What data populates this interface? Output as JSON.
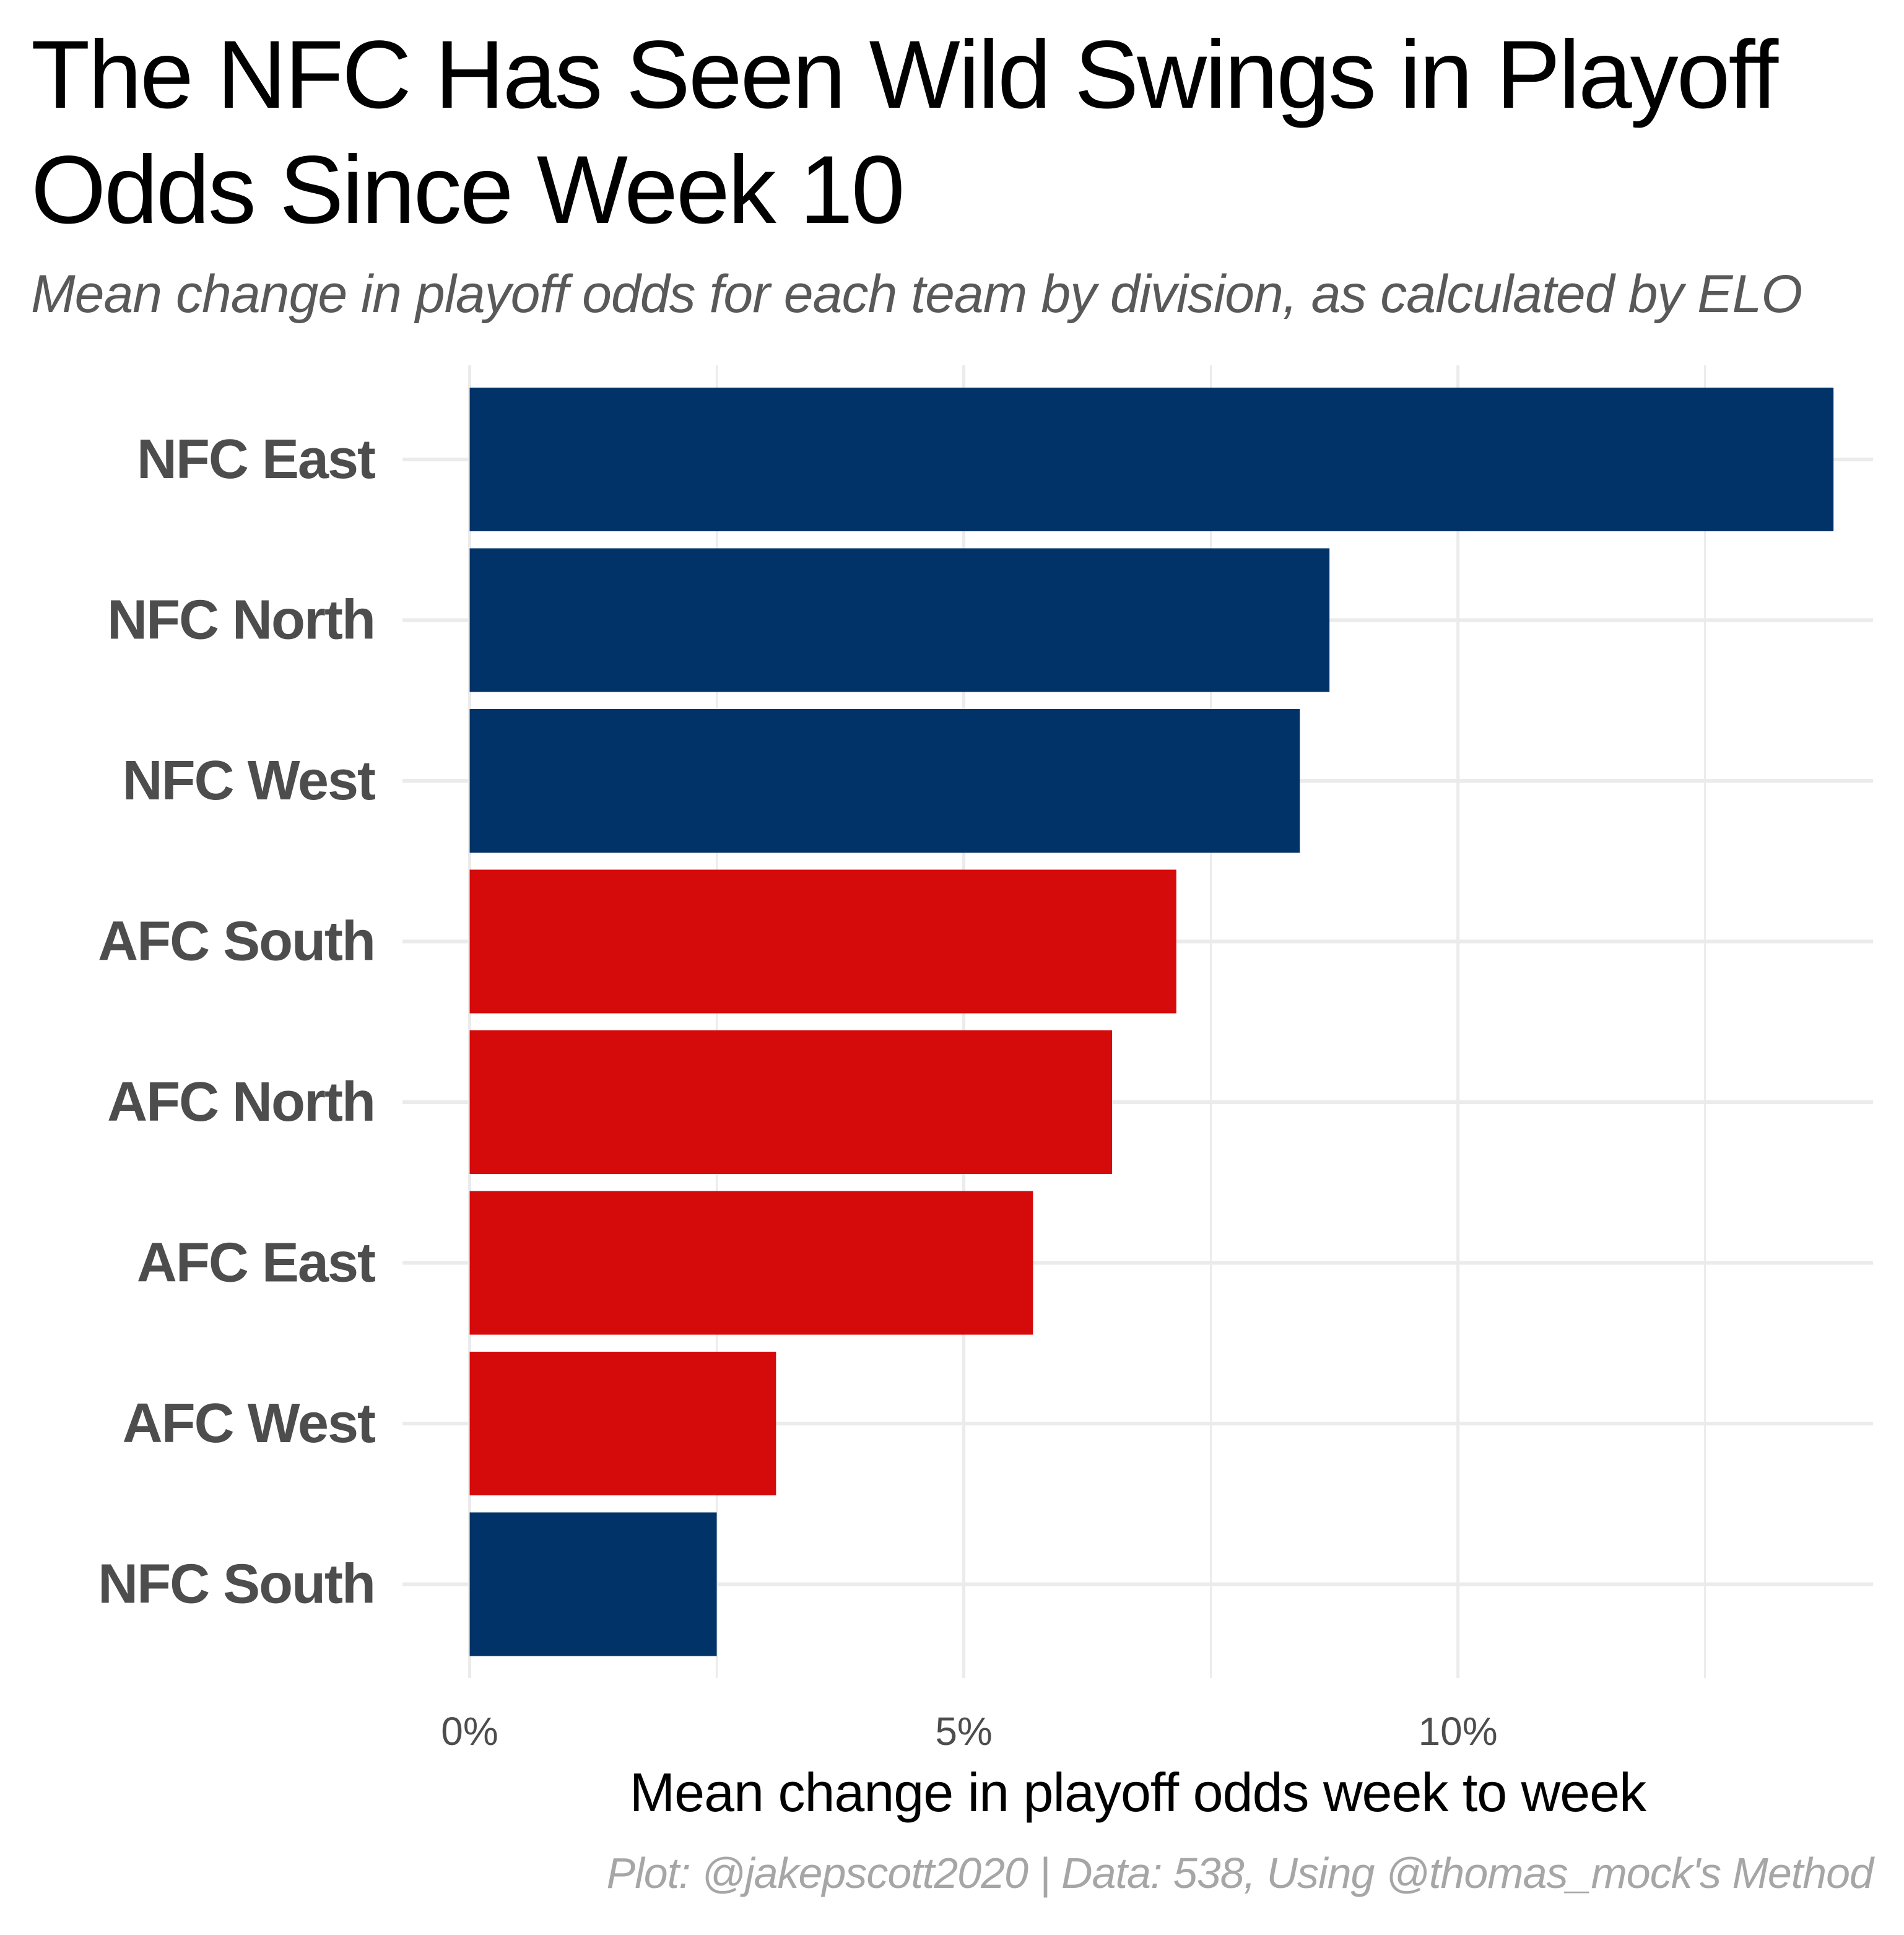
{
  "chart_data": {
    "type": "bar",
    "orientation": "horizontal",
    "title": "The NFC Has Seen Wild Swings in Playoff Odds Since Week 10",
    "subtitle": "Mean change in playoff odds for each team by division, as calculated by ELO",
    "xlabel": "Mean change in playoff odds week to week",
    "ylabel": "",
    "caption": "Plot: @jakepscott2020 | Data: 538, Using @thomas_mock's Method",
    "categories": [
      "NFC East",
      "NFC North",
      "NFC West",
      "AFC South",
      "AFC North",
      "AFC East",
      "AFC West",
      "NFC South"
    ],
    "values": [
      13.8,
      8.7,
      8.4,
      7.15,
      6.5,
      5.7,
      3.1,
      2.5
    ],
    "conference": [
      "NFC",
      "NFC",
      "NFC",
      "AFC",
      "AFC",
      "AFC",
      "AFC",
      "NFC"
    ],
    "colors": {
      "NFC": "#013369",
      "AFC": "#D50A0A"
    },
    "xlim": [
      -0.68,
      14.2
    ],
    "xticks": [
      0,
      5,
      10
    ],
    "xtick_labels": [
      "0%",
      "5%",
      "10%"
    ],
    "minor_gridlines": [
      2.5,
      7.5,
      12.5
    ],
    "grid": true,
    "legend": "none"
  }
}
